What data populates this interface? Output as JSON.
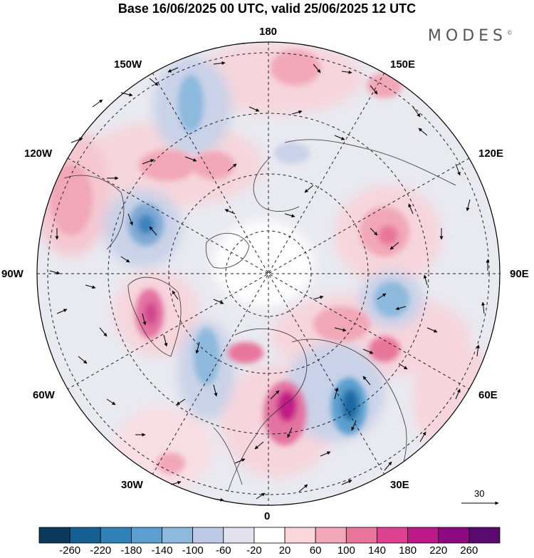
{
  "header": {
    "title": "Base 16/06/2025 00 UTC, valid 25/06/2025 12 UTC",
    "brand": "MODES",
    "brand_mark": "©"
  },
  "map": {
    "projection": "north polar stereographic",
    "longitude_labels": {
      "top": "180",
      "top_left": "150W",
      "top_right": "150E",
      "upper_left": "120W",
      "upper_right": "120E",
      "left": "90W",
      "right": "90E",
      "lower_left": "60W",
      "lower_right": "60E",
      "bottom_left": "30W",
      "bottom_right": "30E",
      "bottom": "0"
    },
    "wind_vector_reference": "30"
  },
  "colorbar": {
    "ticks": [
      "-260",
      "-220",
      "-180",
      "-140",
      "-100",
      "-60",
      "-20",
      "20",
      "60",
      "100",
      "140",
      "180",
      "220",
      "260"
    ],
    "colors": [
      "#0b3a5c",
      "#165f93",
      "#2f81b8",
      "#5a9fcf",
      "#8db9dd",
      "#bfcbe6",
      "#e3e3f0",
      "#ffffff",
      "#f8d6dc",
      "#f1a7b8",
      "#e8769b",
      "#dc4290",
      "#bb188a",
      "#8c0a82",
      "#5a0a6e"
    ]
  }
}
